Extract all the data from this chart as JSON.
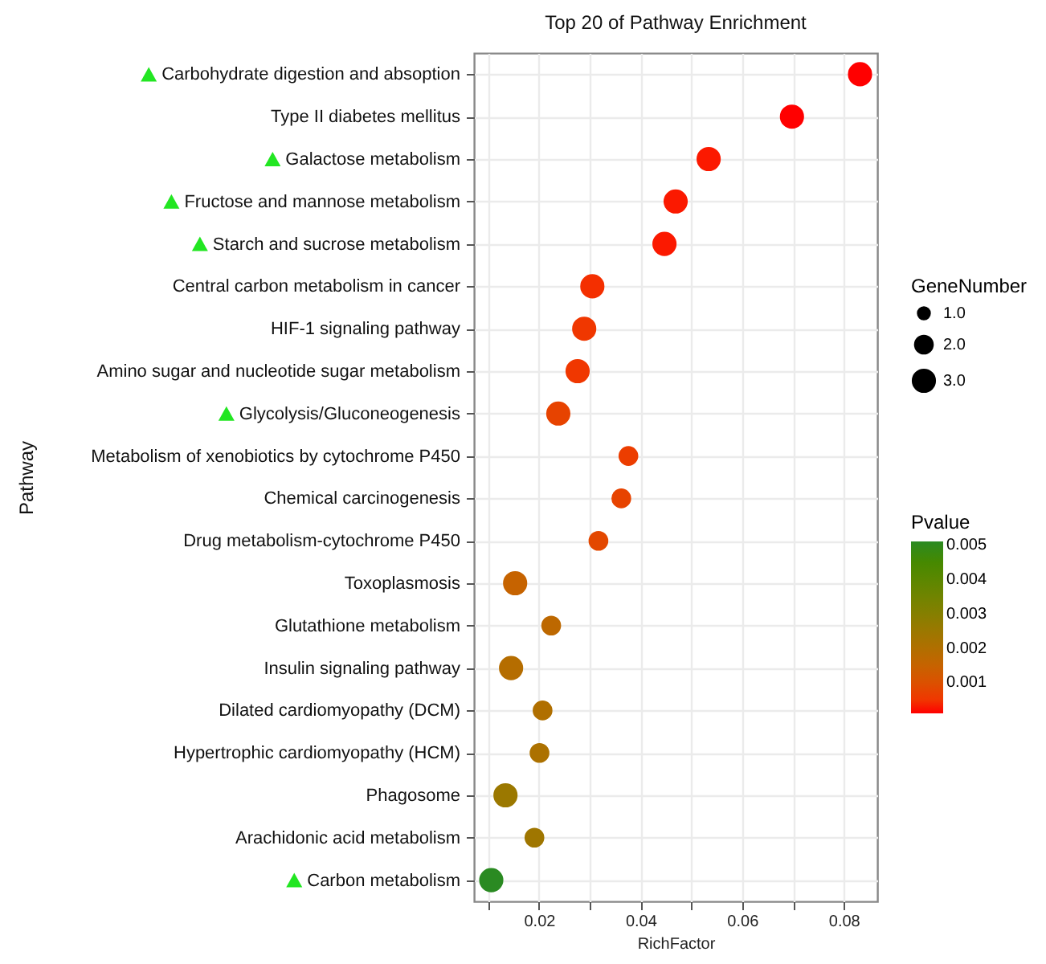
{
  "chart_data": {
    "type": "bubble",
    "title": "Top 20 of Pathway Enrichment",
    "xlabel": "RichFactor",
    "ylabel": "Pathway",
    "legend_title": "GeneNumber",
    "clabel": "Pvalue",
    "categories": [
      "Carbohydrate digestion and absoption",
      "Type II diabetes mellitus",
      "Galactose metabolism",
      "Fructose and mannose metabolism",
      "Starch and sucrose metabolism",
      "Central carbon metabolism in cancer",
      "HIF-1 signaling pathway",
      "Amino sugar and nucleotide sugar metabolism",
      "Glycolysis/Gluconeogenesis",
      "Metabolism of xenobiotics by cytochrome P450",
      "Chemical carcinogenesis",
      "Drug metabolism-cytochrome P450",
      "Toxoplasmosis",
      "Glutathione metabolism",
      "Insulin signaling pathway",
      "Dilated cardiomyopathy (DCM)",
      "Hypertrophic cardiomyopathy (HCM)",
      "Phagosome",
      "Arachidonic acid metabolism",
      "Carbon metabolism"
    ],
    "values": [
      0.0832,
      0.0698,
      0.0534,
      0.0469,
      0.0447,
      0.0305,
      0.0289,
      0.0276,
      0.0238,
      0.0376,
      0.0362,
      0.0317,
      0.0153,
      0.0224,
      0.0145,
      0.0207,
      0.0201,
      0.0134,
      0.0191,
      0.0106
    ],
    "sizes": [
      3,
      3,
      3,
      3,
      3,
      3,
      3,
      3,
      3,
      2,
      2,
      2,
      3,
      2,
      3,
      2,
      2,
      3,
      2,
      3
    ],
    "size_legend": [
      {
        "value": 1,
        "label": "1.0"
      },
      {
        "value": 2,
        "label": "2.0"
      },
      {
        "value": 3,
        "label": "3.0"
      }
    ],
    "cvalues": [
      0.0001,
      0.0001,
      0.0002,
      0.0002,
      0.0002,
      0.0004,
      0.0005,
      0.0005,
      0.0007,
      0.0006,
      0.0007,
      0.0008,
      0.0015,
      0.0017,
      0.0019,
      0.002,
      0.0021,
      0.0025,
      0.0024,
      0.0051
    ],
    "clim": [
      0.0001,
      0.0051
    ],
    "cticks": [
      0.001,
      0.002,
      0.003,
      0.004,
      0.005
    ],
    "xlim": [
      0.0072,
      0.0866
    ],
    "xticks": [
      {
        "value": 0.01,
        "label": null
      },
      0.02,
      {
        "value": 0.03,
        "label": null
      },
      0.04,
      {
        "value": 0.05,
        "label": null
      },
      0.06,
      {
        "value": 0.07,
        "label": null
      },
      0.08
    ],
    "grid": true,
    "orientation": "horizontal"
  }
}
